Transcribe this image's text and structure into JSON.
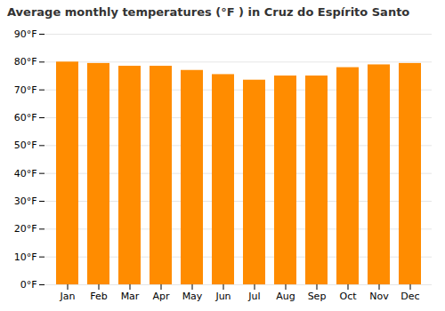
{
  "chart_data": {
    "type": "bar",
    "title": "Average monthly temperatures (°F ) in Cruz do Espírito Santo",
    "categories": [
      "Jan",
      "Feb",
      "Mar",
      "Apr",
      "May",
      "Jun",
      "Jul",
      "Aug",
      "Sep",
      "Oct",
      "Nov",
      "Dec"
    ],
    "values": [
      80,
      79.5,
      78.5,
      78.5,
      77,
      75.5,
      73.5,
      75,
      75,
      78,
      79,
      79.5
    ],
    "color": "#FF8C00",
    "ylim": [
      0,
      90
    ],
    "yticks": [
      {
        "value": 0,
        "label": "0°F"
      },
      {
        "value": 10,
        "label": "10°F"
      },
      {
        "value": 20,
        "label": "20°F"
      },
      {
        "value": 30,
        "label": "30°F"
      },
      {
        "value": 40,
        "label": "40°F"
      },
      {
        "value": 50,
        "label": "50°F"
      },
      {
        "value": 60,
        "label": "60°F"
      },
      {
        "value": 70,
        "label": "70°F"
      },
      {
        "value": 80,
        "label": "80°F"
      },
      {
        "value": 90,
        "label": "90°F"
      }
    ],
    "grid": true
  }
}
